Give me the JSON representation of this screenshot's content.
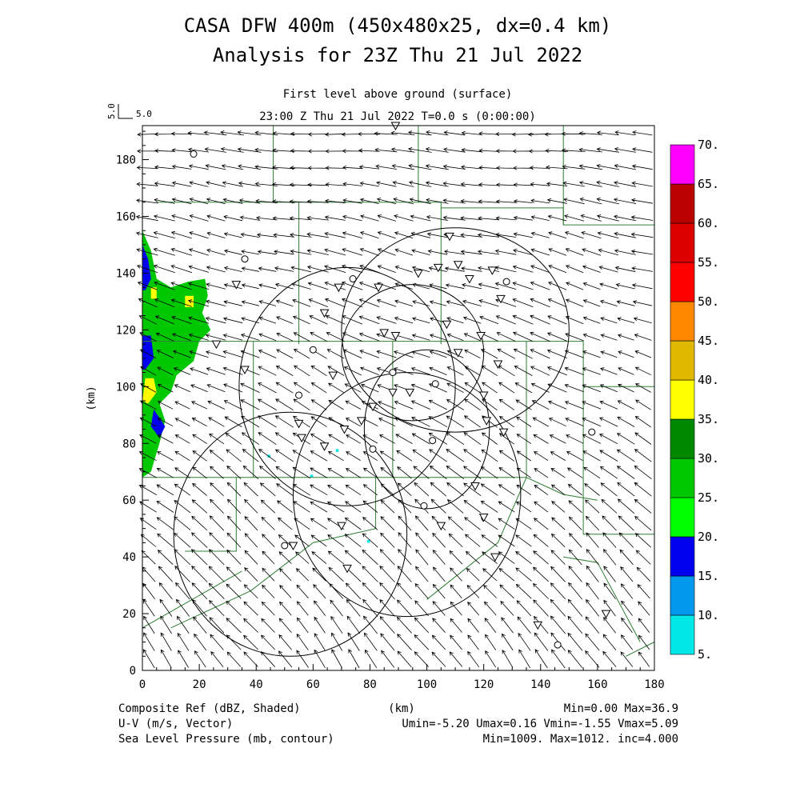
{
  "title_line1": "CASA DFW 400m (450x480x25, dx=0.4 km)",
  "title_line2": "Analysis for 23Z Thu 21 Jul 2022",
  "subtitle_line1": "First level above ground (surface)",
  "subtitle_line2": "23:00 Z Thu 21 Jul 2022   T=0.0 s (0:00:00)",
  "vector_ref": {
    "y_label": "5.0",
    "x_label": "5.0"
  },
  "footer": {
    "left": [
      "Composite Ref (dBZ, Shaded)",
      "U-V (m/s, Vector)",
      "Sea Level Pressure (mb, contour)"
    ],
    "center": "(km)",
    "right": [
      "Min=0.00 Max=36.9",
      "Umin=-5.20 Umax=0.16 Vmin=-1.55 Vmax=5.09",
      "Min=1009. Max=1012. inc=4.000"
    ]
  },
  "colors": {
    "plot_bg": "#ffffff",
    "vector": "#000000",
    "boundary": "#2e7d32",
    "contour": "#000000",
    "colorbar": [
      "#00e8e8",
      "#0099ee",
      "#0000ee",
      "#00ff00",
      "#00c800",
      "#008800",
      "#ffff00",
      "#e0b800",
      "#ff8800",
      "#ff0000",
      "#dd0000",
      "#bb0000",
      "#ff00ff"
    ]
  },
  "chart_data": {
    "type": "heatmap",
    "xlabel": "",
    "ylabel": "(km)",
    "xlim": [
      0,
      180
    ],
    "ylim": [
      0,
      192
    ],
    "xticks": [
      0,
      20,
      40,
      60,
      80,
      100,
      120,
      140,
      160,
      180
    ],
    "yticks": [
      0,
      20,
      40,
      60,
      80,
      100,
      120,
      140,
      160,
      180
    ],
    "colorbar": {
      "levels": [
        "5.",
        "10.",
        "15.",
        "20.",
        "25.",
        "30.",
        "35.",
        "40.",
        "45.",
        "50.",
        "55.",
        "60.",
        "65.",
        "70."
      ]
    },
    "reflectivity_regions": [
      {
        "level": "green",
        "points": [
          [
            0,
            155
          ],
          [
            3,
            148
          ],
          [
            5,
            138
          ],
          [
            10,
            135
          ],
          [
            16,
            137
          ],
          [
            22,
            138
          ],
          [
            23,
            132
          ],
          [
            21,
            126
          ],
          [
            24,
            120
          ],
          [
            20,
            116
          ],
          [
            18,
            109
          ],
          [
            12,
            104
          ],
          [
            10,
            98
          ],
          [
            6,
            94
          ],
          [
            8,
            88
          ],
          [
            6,
            80
          ],
          [
            3,
            70
          ],
          [
            0,
            68
          ]
        ]
      },
      {
        "level": "blue",
        "points": [
          [
            0,
            150
          ],
          [
            2,
            145
          ],
          [
            3,
            138
          ],
          [
            1,
            134
          ],
          [
            0,
            134
          ]
        ]
      },
      {
        "level": "blue",
        "points": [
          [
            0,
            118
          ],
          [
            3,
            118
          ],
          [
            4,
            110
          ],
          [
            1,
            106
          ],
          [
            0,
            106
          ]
        ]
      },
      {
        "level": "blue",
        "points": [
          [
            4,
            92
          ],
          [
            8,
            86
          ],
          [
            6,
            82
          ],
          [
            3,
            86
          ]
        ]
      },
      {
        "level": "yellow",
        "points": [
          [
            3,
            135
          ],
          [
            5,
            135
          ],
          [
            5,
            131
          ],
          [
            3,
            131
          ]
        ]
      },
      {
        "level": "yellow",
        "points": [
          [
            15,
            132
          ],
          [
            18,
            132
          ],
          [
            18,
            128
          ],
          [
            15,
            128
          ]
        ]
      },
      {
        "level": "yellow",
        "points": [
          [
            1,
            103
          ],
          [
            4,
            103
          ],
          [
            5,
            98
          ],
          [
            2,
            94
          ],
          [
            0,
            95
          ]
        ]
      },
      {
        "level": "cyan",
        "points": [
          [
            44,
            76
          ],
          [
            45,
            76
          ],
          [
            45,
            75
          ],
          [
            44,
            75
          ]
        ]
      },
      {
        "level": "cyan",
        "points": [
          [
            68,
            78
          ],
          [
            69,
            78
          ],
          [
            69,
            77
          ],
          [
            68,
            77
          ]
        ]
      },
      {
        "level": "cyan",
        "points": [
          [
            59,
            69
          ],
          [
            60,
            69
          ],
          [
            60,
            68
          ],
          [
            59,
            68
          ]
        ]
      },
      {
        "level": "cyan",
        "points": [
          [
            79,
            46
          ],
          [
            80,
            46
          ],
          [
            80,
            45
          ],
          [
            79,
            45
          ]
        ]
      }
    ],
    "wind_field": {
      "description": "Easterly flow over the domain, turning southeasterly in the south",
      "north_u": -4.5,
      "north_v": 0.2,
      "south_u": -2.5,
      "south_v": 3.5,
      "umin": -5.2,
      "umax": 0.16,
      "vmin": -1.55,
      "vmax": 5.09
    },
    "pressure_contours": [
      {
        "type": "ellipse",
        "cx": 110,
        "cy": 120,
        "rx": 40,
        "ry": 36
      },
      {
        "type": "ellipse",
        "cx": 72,
        "cy": 100,
        "rx": 38,
        "ry": 42
      },
      {
        "type": "ellipse",
        "cx": 95,
        "cy": 112,
        "rx": 25,
        "ry": 24
      },
      {
        "type": "ellipse",
        "cx": 93,
        "cy": 62,
        "rx": 40,
        "ry": 43
      },
      {
        "type": "ellipse",
        "cx": 52,
        "cy": 48,
        "rx": 41,
        "ry": 43
      },
      {
        "type": "ellipse",
        "cx": 100,
        "cy": 85,
        "rx": 22,
        "ry": 28
      }
    ],
    "county_boundaries": [
      [
        [
          5,
          165
        ],
        [
          55,
          165
        ],
        [
          55,
          115
        ]
      ],
      [
        [
          55,
          165
        ],
        [
          105,
          165
        ],
        [
          105,
          115
        ]
      ],
      [
        [
          105,
          163
        ],
        [
          148,
          163
        ],
        [
          148,
          157
        ],
        [
          180,
          157
        ]
      ],
      [
        [
          46,
          192
        ],
        [
          46,
          165
        ]
      ],
      [
        [
          97,
          192
        ],
        [
          97,
          165
        ]
      ],
      [
        [
          148,
          192
        ],
        [
          148,
          157
        ]
      ],
      [
        [
          0,
          116
        ],
        [
          155,
          116
        ],
        [
          155,
          100
        ],
        [
          180,
          100
        ]
      ],
      [
        [
          39,
          116
        ],
        [
          39,
          68
        ]
      ],
      [
        [
          88,
          116
        ],
        [
          88,
          68
        ]
      ],
      [
        [
          135,
          116
        ],
        [
          135,
          68
        ]
      ],
      [
        [
          155,
          100
        ],
        [
          155,
          48
        ],
        [
          180,
          48
        ]
      ],
      [
        [
          0,
          68
        ],
        [
          135,
          68
        ],
        [
          148,
          62
        ],
        [
          160,
          60
        ]
      ],
      [
        [
          33,
          68
        ],
        [
          33,
          42
        ],
        [
          15,
          42
        ]
      ],
      [
        [
          82,
          68
        ],
        [
          82,
          50
        ],
        [
          60,
          45
        ],
        [
          38,
          28
        ],
        [
          10,
          15
        ]
      ],
      [
        [
          35,
          35
        ],
        [
          0,
          15
        ]
      ],
      [
        [
          135,
          68
        ],
        [
          125,
          45
        ],
        [
          100,
          25
        ]
      ],
      [
        [
          148,
          40
        ],
        [
          160,
          38
        ],
        [
          175,
          10
        ]
      ],
      [
        [
          170,
          5
        ],
        [
          180,
          10
        ]
      ]
    ],
    "station_markers": {
      "circles": [
        [
          18,
          182
        ],
        [
          36,
          145
        ],
        [
          74,
          138
        ],
        [
          128,
          137
        ],
        [
          60,
          113
        ],
        [
          88,
          105
        ],
        [
          103,
          101
        ],
        [
          55,
          97
        ],
        [
          102,
          81
        ],
        [
          81,
          78
        ],
        [
          158,
          84
        ],
        [
          99,
          58
        ],
        [
          50,
          44
        ],
        [
          146,
          9
        ]
      ],
      "triangles": [
        [
          89,
          192
        ],
        [
          108,
          153
        ],
        [
          104,
          142
        ],
        [
          111,
          143
        ],
        [
          123,
          141
        ],
        [
          115,
          138
        ],
        [
          97,
          140
        ],
        [
          83,
          135
        ],
        [
          69,
          135
        ],
        [
          33,
          136
        ],
        [
          64,
          126
        ],
        [
          126,
          131
        ],
        [
          107,
          122
        ],
        [
          85,
          119
        ],
        [
          89,
          118
        ],
        [
          119,
          118
        ],
        [
          26,
          115
        ],
        [
          111,
          112
        ],
        [
          125,
          108
        ],
        [
          36,
          106
        ],
        [
          67,
          104
        ],
        [
          88,
          98
        ],
        [
          94,
          98
        ],
        [
          120,
          97
        ],
        [
          81,
          93
        ],
        [
          71,
          85
        ],
        [
          77,
          88
        ],
        [
          121,
          88
        ],
        [
          127,
          84
        ],
        [
          55,
          87
        ],
        [
          56,
          82
        ],
        [
          64,
          79
        ],
        [
          117,
          65
        ],
        [
          70,
          51
        ],
        [
          105,
          51
        ],
        [
          120,
          54
        ],
        [
          53,
          44
        ],
        [
          72,
          36
        ],
        [
          124,
          40
        ],
        [
          139,
          16
        ],
        [
          163,
          20
        ]
      ]
    }
  }
}
